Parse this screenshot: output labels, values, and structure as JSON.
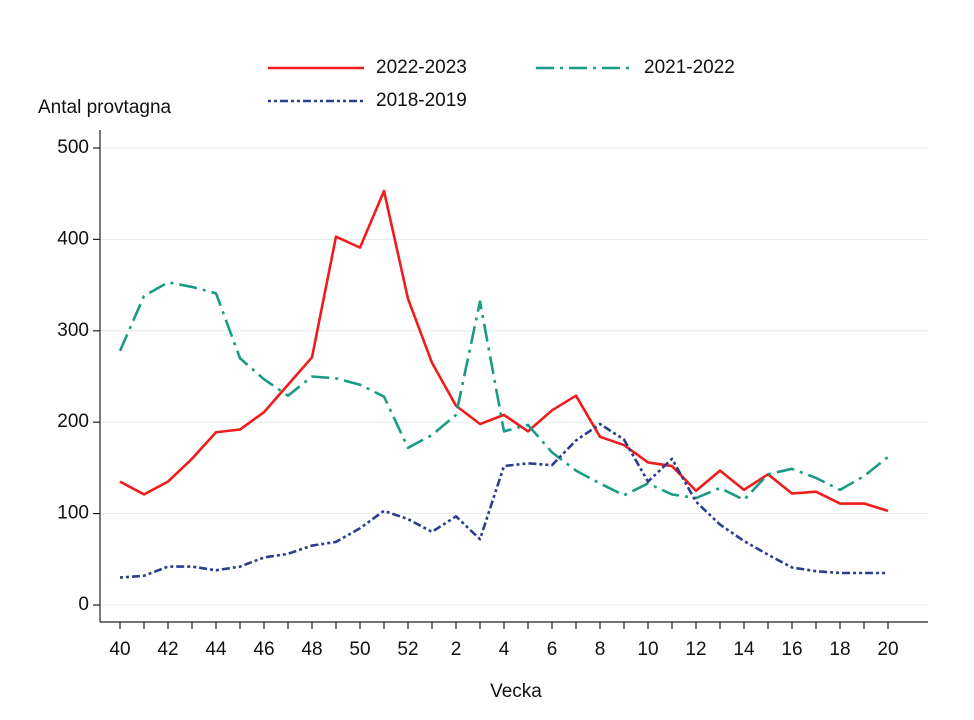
{
  "chart_data": {
    "type": "line",
    "y_label": "Antal provtagna",
    "x_label": "Vecka",
    "categories": [
      "40",
      null,
      "42",
      null,
      "44",
      null,
      "46",
      null,
      "48",
      null,
      "50",
      null,
      "52",
      null,
      "2",
      null,
      "4",
      null,
      "6",
      null,
      "8",
      null,
      "10",
      null,
      "12",
      null,
      "14",
      null,
      "16",
      null,
      "18",
      null,
      "20"
    ],
    "series": [
      {
        "name": "2022-2023",
        "color": "#ee1c1c",
        "dash": "none",
        "values": [
          135,
          121,
          135,
          160,
          189,
          192,
          211,
          241,
          271,
          403,
          391,
          453,
          335,
          265,
          218,
          198,
          208,
          190,
          213,
          229,
          184,
          175,
          156,
          152,
          125,
          147,
          126,
          143,
          122,
          124,
          111,
          111,
          103
        ]
      },
      {
        "name": "2021-2022",
        "color": "#1a9c84",
        "dash": "18 6 3 6",
        "values": [
          278,
          338,
          353,
          348,
          341,
          270,
          247,
          229,
          250,
          248,
          241,
          228,
          172,
          186,
          208,
          332,
          190,
          197,
          167,
          147,
          133,
          120,
          133,
          121,
          117,
          128,
          115,
          143,
          149,
          139,
          126,
          141,
          162
        ]
      },
      {
        "name": "2018-2019",
        "color": "#2b3d8f",
        "dash": "3 3 3 3 8 3",
        "values": [
          30,
          32,
          42,
          42,
          38,
          42,
          52,
          56,
          65,
          69,
          84,
          103,
          94,
          80,
          97,
          72,
          152,
          155,
          153,
          180,
          198,
          181,
          135,
          160,
          113,
          88,
          70,
          55,
          41,
          37,
          35,
          35,
          35
        ]
      }
    ],
    "ylim": [
      0,
      500
    ],
    "yticks": [
      0,
      100,
      200,
      300,
      400,
      500
    ],
    "grid": true
  }
}
